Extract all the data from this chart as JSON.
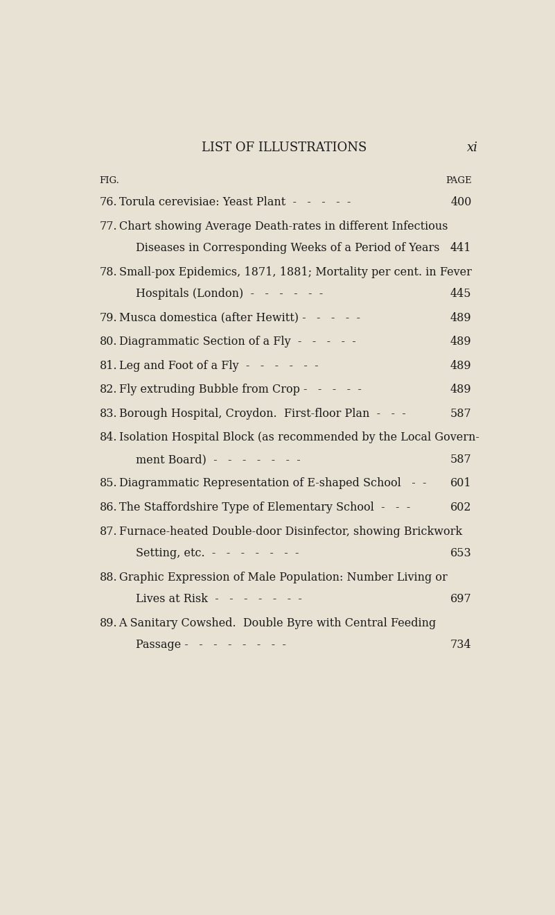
{
  "background_color": "#e8e2d4",
  "header_title": "LIST OF ILLUSTRATIONS",
  "header_page_label": "xi",
  "col_fig_label": "FIG.",
  "col_page_label": "PAGE",
  "entries": [
    {
      "num": "76.",
      "line1": "Torula cerevisiae: Yeast Plant  -   -   -   -  -",
      "line2": null,
      "page": "400"
    },
    {
      "num": "77.",
      "line1": "Chart showing Average Death-rates in different Infectious",
      "line2": "Diseases in Corresponding Weeks of a Period of Years   -",
      "page": "441"
    },
    {
      "num": "78.",
      "line1": "Small-pox Epidemics, 1871, 1881; Mortality per cent. in Fever",
      "line2": "Hospitals (London)  -   -   -   -   -  -",
      "page": "445"
    },
    {
      "num": "79.",
      "line1": "Musca domestica (after Hewitt) -   -   -   -  -",
      "line2": null,
      "page": "489"
    },
    {
      "num": "80.",
      "line1": "Diagrammatic Section of a Fly  -   -   -   -  -",
      "line2": null,
      "page": "489"
    },
    {
      "num": "81.",
      "line1": "Leg and Foot of a Fly  -   -   -   -   -  -",
      "line2": null,
      "page": "489"
    },
    {
      "num": "82.",
      "line1": "Fly extruding Bubble from Crop -   -   -   -  -",
      "line2": null,
      "page": "489"
    },
    {
      "num": "83.",
      "line1": "Borough Hospital, Croydon.  First-floor Plan  -   -  -",
      "line2": null,
      "page": "587"
    },
    {
      "num": "84.",
      "line1": "Isolation Hospital Block (as recommended by the Local Govern-",
      "line2": "ment Board)  -   -   -   -   -   -  -",
      "page": "587"
    },
    {
      "num": "85.",
      "line1": "Diagrammatic Representation of E-shaped School   -  -",
      "line2": null,
      "page": "601"
    },
    {
      "num": "86.",
      "line1": "The Staffordshire Type of Elementary School  -   -  -",
      "line2": null,
      "page": "602"
    },
    {
      "num": "87.",
      "line1": "Furnace-heated Double-door Disinfector, showing Brickwork",
      "line2": "Setting, etc.  -   -   -   -   -   -  -",
      "page": "653"
    },
    {
      "num": "88.",
      "line1": "Graphic Expression of Male Population: Number Living or",
      "line2": "Lives at Risk  -   -   -   -   -   -  -",
      "page": "697"
    },
    {
      "num": "89.",
      "line1": "A Sanitary Cowshed.  Double Byre with Central Feeding",
      "line2": "Passage -   -   -   -   -   -   -  -",
      "page": "734"
    }
  ],
  "text_color": "#1a1a1a",
  "title_fontsize": 13,
  "body_fontsize": 11.5,
  "label_fontsize": 9.5,
  "page_width": 8.01,
  "page_height": 13.19
}
